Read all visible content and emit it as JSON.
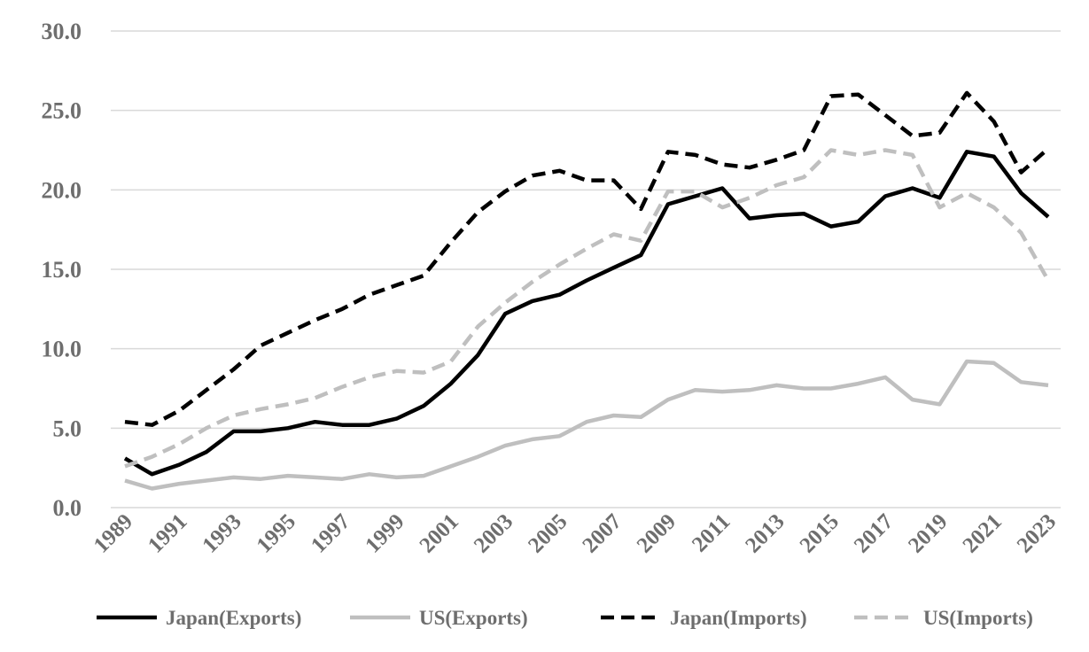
{
  "chart_data": {
    "type": "line",
    "title": "",
    "xlabel": "",
    "ylabel": "",
    "ylim": [
      0,
      30
    ],
    "yticks": [
      "0.0",
      "5.0",
      "10.0",
      "15.0",
      "20.0",
      "25.0",
      "30.0"
    ],
    "xticks": [
      "1989",
      "1991",
      "1993",
      "1995",
      "1997",
      "1999",
      "2001",
      "2003",
      "2005",
      "2007",
      "2009",
      "2011",
      "2013",
      "2015",
      "2017",
      "2019",
      "2021",
      "2023"
    ],
    "grid": "horizontal",
    "legend_position": "bottom",
    "x": [
      1989,
      1990,
      1991,
      1992,
      1993,
      1994,
      1995,
      1996,
      1997,
      1998,
      1999,
      2000,
      2001,
      2002,
      2003,
      2004,
      2005,
      2006,
      2007,
      2008,
      2009,
      2010,
      2011,
      2012,
      2013,
      2014,
      2015,
      2016,
      2017,
      2018,
      2019,
      2020,
      2021,
      2022,
      2023
    ],
    "series": [
      {
        "name": "Japan(Exports)",
        "color": "#000000",
        "dash": "solid",
        "values": [
          3.1,
          2.1,
          2.7,
          3.5,
          4.8,
          4.8,
          5.0,
          5.4,
          5.2,
          5.2,
          5.6,
          6.4,
          7.8,
          9.6,
          12.2,
          13.0,
          13.4,
          14.3,
          15.1,
          15.9,
          19.1,
          19.6,
          20.1,
          18.2,
          18.4,
          18.5,
          17.7,
          18.0,
          19.6,
          20.1,
          19.5,
          22.4,
          22.1,
          19.8,
          18.3
        ]
      },
      {
        "name": "US(Exports)",
        "color": "#bfbfbf",
        "dash": "solid",
        "values": [
          1.7,
          1.2,
          1.5,
          1.7,
          1.9,
          1.8,
          2.0,
          1.9,
          1.8,
          2.1,
          1.9,
          2.0,
          2.6,
          3.2,
          3.9,
          4.3,
          4.5,
          5.4,
          5.8,
          5.7,
          6.8,
          7.4,
          7.3,
          7.4,
          7.7,
          7.5,
          7.5,
          7.8,
          8.2,
          6.8,
          6.5,
          9.2,
          9.1,
          7.9,
          7.7
        ]
      },
      {
        "name": "Japan(Imports)",
        "color": "#000000",
        "dash": "dashed",
        "values": [
          5.4,
          5.2,
          6.1,
          7.4,
          8.7,
          10.2,
          11.0,
          11.8,
          12.5,
          13.4,
          14.0,
          14.6,
          16.7,
          18.6,
          19.9,
          20.9,
          21.2,
          20.6,
          20.6,
          18.8,
          22.4,
          22.2,
          21.6,
          21.4,
          21.9,
          22.5,
          25.9,
          26.0,
          24.7,
          23.4,
          23.6,
          26.1,
          24.3,
          21.1,
          22.6
        ]
      },
      {
        "name": "US(Imports)",
        "color": "#bfbfbf",
        "dash": "dashed",
        "values": [
          2.6,
          3.2,
          4.0,
          5.0,
          5.8,
          6.2,
          6.5,
          6.9,
          7.6,
          8.2,
          8.6,
          8.5,
          9.2,
          11.4,
          12.9,
          14.2,
          15.3,
          16.3,
          17.2,
          16.8,
          19.9,
          19.9,
          18.9,
          19.5,
          20.3,
          20.8,
          22.5,
          22.2,
          22.5,
          22.2,
          18.9,
          19.8,
          18.9,
          17.3,
          14.3
        ]
      }
    ]
  }
}
